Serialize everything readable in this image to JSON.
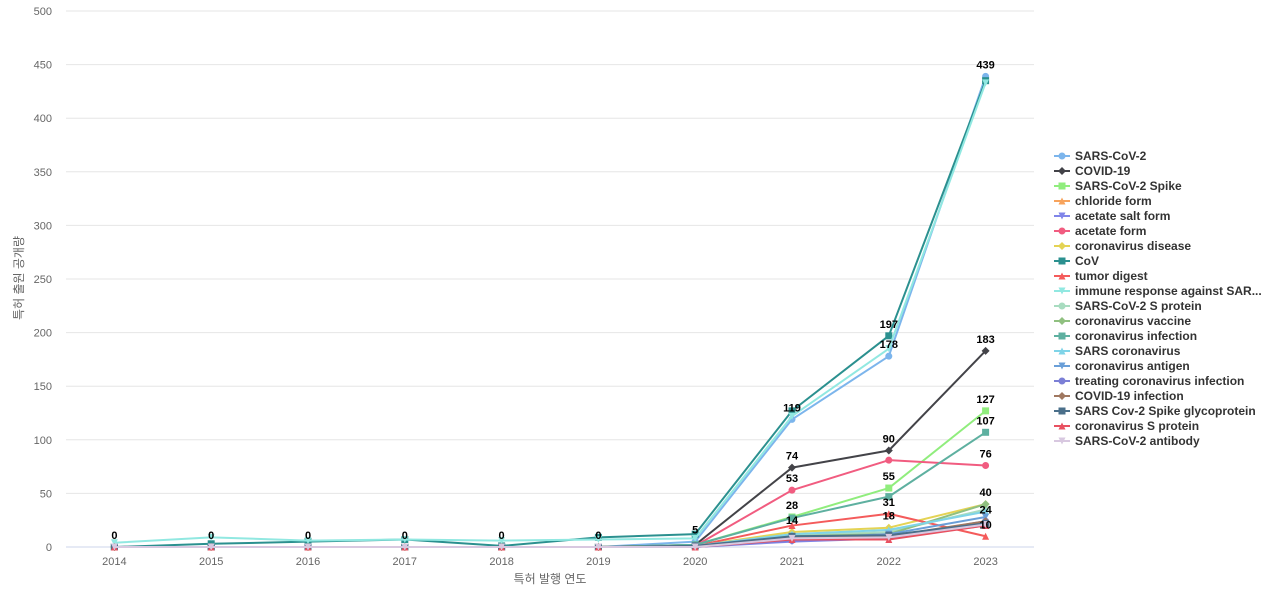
{
  "chart_data": {
    "type": "line",
    "title": "",
    "xlabel": "특허 발행 연도",
    "ylabel": "특허 출원 공개량",
    "ylim": [
      0,
      500
    ],
    "yticks": [
      0,
      50,
      100,
      150,
      200,
      250,
      300,
      350,
      400,
      450,
      500
    ],
    "grid": true,
    "legend_position": "right",
    "categories": [
      "2014",
      "2015",
      "2016",
      "2017",
      "2018",
      "2019",
      "2020",
      "2021",
      "2022",
      "2023"
    ],
    "series": [
      {
        "name": "SARS-CoV-2",
        "color": "#7cb5ec",
        "marker": "circle",
        "values": [
          0,
          0,
          0,
          0,
          0,
          0,
          5,
          119,
          178,
          439
        ]
      },
      {
        "name": "COVID-19",
        "color": "#434348",
        "marker": "diamond",
        "values": [
          0,
          0,
          0,
          0,
          0,
          0,
          2,
          74,
          90,
          183
        ]
      },
      {
        "name": "SARS-CoV-2 Spike",
        "color": "#90ed7d",
        "marker": "square",
        "values": [
          0,
          0,
          0,
          0,
          0,
          0,
          2,
          28,
          55,
          127
        ]
      },
      {
        "name": "chloride form",
        "color": "#f7a35c",
        "marker": "triangle",
        "values": [
          0,
          0,
          0,
          0,
          0,
          0,
          1,
          8,
          10,
          22
        ]
      },
      {
        "name": "acetate salt form",
        "color": "#8085e9",
        "marker": "triangle-down",
        "values": [
          0,
          0,
          0,
          0,
          0,
          0,
          0,
          5,
          8,
          20
        ]
      },
      {
        "name": "acetate form",
        "color": "#f15c80",
        "marker": "circle",
        "values": [
          0,
          0,
          0,
          0,
          0,
          0,
          1,
          53,
          81,
          76
        ]
      },
      {
        "name": "coronavirus disease",
        "color": "#e4d354",
        "marker": "diamond",
        "values": [
          0,
          0,
          0,
          0,
          0,
          0,
          1,
          14,
          18,
          40
        ]
      },
      {
        "name": "CoV",
        "color": "#2b908f",
        "marker": "square",
        "values": [
          0,
          3,
          5,
          7,
          1,
          9,
          12,
          127,
          197,
          435
        ]
      },
      {
        "name": "tumor digest",
        "color": "#f45b5b",
        "marker": "triangle",
        "values": [
          0,
          0,
          0,
          0,
          0,
          0,
          1,
          20,
          31,
          10
        ]
      },
      {
        "name": "immune response against SAR...",
        "color": "#91e8e1",
        "marker": "triangle-down",
        "values": [
          4,
          9,
          6,
          7,
          6,
          7,
          8,
          122,
          185,
          433
        ]
      },
      {
        "name": "SARS-CoV-2 S protein",
        "color": "#a8dcc0",
        "marker": "circle",
        "values": [
          0,
          0,
          0,
          0,
          0,
          0,
          1,
          11,
          14,
          35
        ]
      },
      {
        "name": "coronavirus vaccine",
        "color": "#90c080",
        "marker": "diamond",
        "values": [
          0,
          0,
          0,
          0,
          0,
          0,
          1,
          10,
          12,
          40
        ]
      },
      {
        "name": "coronavirus infection",
        "color": "#5eb0a0",
        "marker": "square",
        "values": [
          0,
          0,
          0,
          0,
          0,
          0,
          2,
          27,
          47,
          107
        ]
      },
      {
        "name": "SARS coronavirus",
        "color": "#7fd4e8",
        "marker": "triangle",
        "values": [
          0,
          0,
          0,
          0,
          0,
          0,
          1,
          12,
          16,
          33
        ]
      },
      {
        "name": "coronavirus antigen",
        "color": "#6a9fd8",
        "marker": "triangle-down",
        "values": [
          0,
          0,
          0,
          0,
          0,
          0,
          1,
          8,
          12,
          28
        ]
      },
      {
        "name": "treating coronavirus infection",
        "color": "#7b7fd6",
        "marker": "circle",
        "values": [
          0,
          0,
          0,
          0,
          0,
          0,
          0,
          6,
          9,
          24
        ]
      },
      {
        "name": "COVID-19 infection",
        "color": "#a07860",
        "marker": "diamond",
        "values": [
          0,
          0,
          0,
          0,
          0,
          0,
          1,
          9,
          10,
          24
        ]
      },
      {
        "name": "SARS Cov-2 Spike glycoprotein",
        "color": "#4a6f8a",
        "marker": "square",
        "values": [
          0,
          0,
          0,
          0,
          0,
          0,
          1,
          10,
          11,
          22
        ]
      },
      {
        "name": "coronavirus S protein",
        "color": "#e85060",
        "marker": "triangle",
        "values": [
          0,
          0,
          0,
          0,
          0,
          0,
          0,
          7,
          7,
          20
        ]
      },
      {
        "name": "SARS-CoV-2 antibody",
        "color": "#d8c8e0",
        "marker": "triangle-down",
        "values": [
          0,
          0,
          0,
          0,
          0,
          0,
          0,
          8,
          9,
          21
        ]
      }
    ],
    "data_labels": [
      {
        "series": 0,
        "index": 0,
        "text": "0"
      },
      {
        "series": 0,
        "index": 1,
        "text": "0"
      },
      {
        "series": 0,
        "index": 2,
        "text": "0"
      },
      {
        "series": 0,
        "index": 3,
        "text": "0"
      },
      {
        "series": 0,
        "index": 4,
        "text": "0"
      },
      {
        "series": 0,
        "index": 5,
        "text": "0"
      },
      {
        "series": 0,
        "index": 6,
        "text": "5"
      },
      {
        "series": 0,
        "index": 7,
        "text": "119"
      },
      {
        "series": 0,
        "index": 8,
        "text": "178"
      },
      {
        "series": 0,
        "index": 9,
        "text": "439"
      },
      {
        "series": 7,
        "index": 8,
        "text": "197"
      },
      {
        "series": 1,
        "index": 7,
        "text": "74"
      },
      {
        "series": 1,
        "index": 8,
        "text": "90"
      },
      {
        "series": 1,
        "index": 9,
        "text": "183"
      },
      {
        "series": 2,
        "index": 7,
        "text": "28"
      },
      {
        "series": 2,
        "index": 8,
        "text": "55"
      },
      {
        "series": 2,
        "index": 9,
        "text": "127"
      },
      {
        "series": 12,
        "index": 9,
        "text": "107"
      },
      {
        "series": 5,
        "index": 7,
        "text": "53"
      },
      {
        "series": 5,
        "index": 9,
        "text": "76"
      },
      {
        "series": 6,
        "index": 7,
        "text": "14"
      },
      {
        "series": 6,
        "index": 8,
        "text": "18"
      },
      {
        "series": 6,
        "index": 9,
        "text": "40"
      },
      {
        "series": 8,
        "index": 8,
        "text": "31"
      },
      {
        "series": 8,
        "index": 9,
        "text": "10"
      },
      {
        "series": 16,
        "index": 9,
        "text": "24"
      }
    ]
  }
}
